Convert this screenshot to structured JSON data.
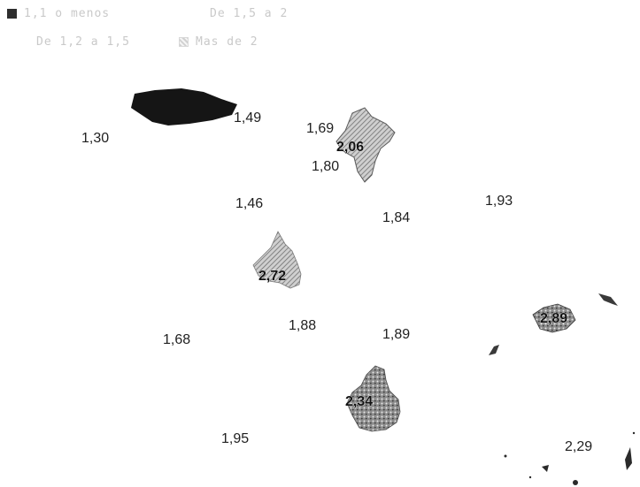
{
  "legend": {
    "items": [
      {
        "label": "1,1 o menos",
        "swatch": "dark"
      },
      {
        "label": "De 1,5 a 2",
        "swatch": "blank"
      },
      {
        "label": "De 1,2 a 1,5",
        "swatch": "blank"
      },
      {
        "label": "Mas de 2",
        "swatch": "hatch"
      }
    ]
  },
  "map": {
    "colors": {
      "dark": "#1a1a1a",
      "medium": "#7a7a7a",
      "hatched": "#9a9a9a",
      "label": "#1f1f1f"
    },
    "region_labels": [
      {
        "id": "asturias",
        "text": "1,49",
        "emphasis": false
      },
      {
        "id": "galicia",
        "text": "1,30",
        "emphasis": false
      },
      {
        "id": "cantabria",
        "text": "1,69",
        "emphasis": false
      },
      {
        "id": "pais-vasco",
        "text": "2,06",
        "emphasis": true
      },
      {
        "id": "navarra",
        "text": "1,80",
        "emphasis": false
      },
      {
        "id": "castilla-leon",
        "text": "1,46",
        "emphasis": false
      },
      {
        "id": "aragon",
        "text": "1,84",
        "emphasis": false
      },
      {
        "id": "cataluna",
        "text": "1,93",
        "emphasis": false
      },
      {
        "id": "madrid",
        "text": "2,72",
        "emphasis": true
      },
      {
        "id": "baleares",
        "text": "2,89",
        "emphasis": true
      },
      {
        "id": "extremadura",
        "text": "1,68",
        "emphasis": false
      },
      {
        "id": "castilla-la-mancha",
        "text": "1,88",
        "emphasis": false
      },
      {
        "id": "valencia",
        "text": "1,89",
        "emphasis": false
      },
      {
        "id": "murcia",
        "text": "2,34",
        "emphasis": true
      },
      {
        "id": "andalucia",
        "text": "1,95",
        "emphasis": false
      },
      {
        "id": "canarias",
        "text": "2,29",
        "emphasis": false
      }
    ]
  }
}
